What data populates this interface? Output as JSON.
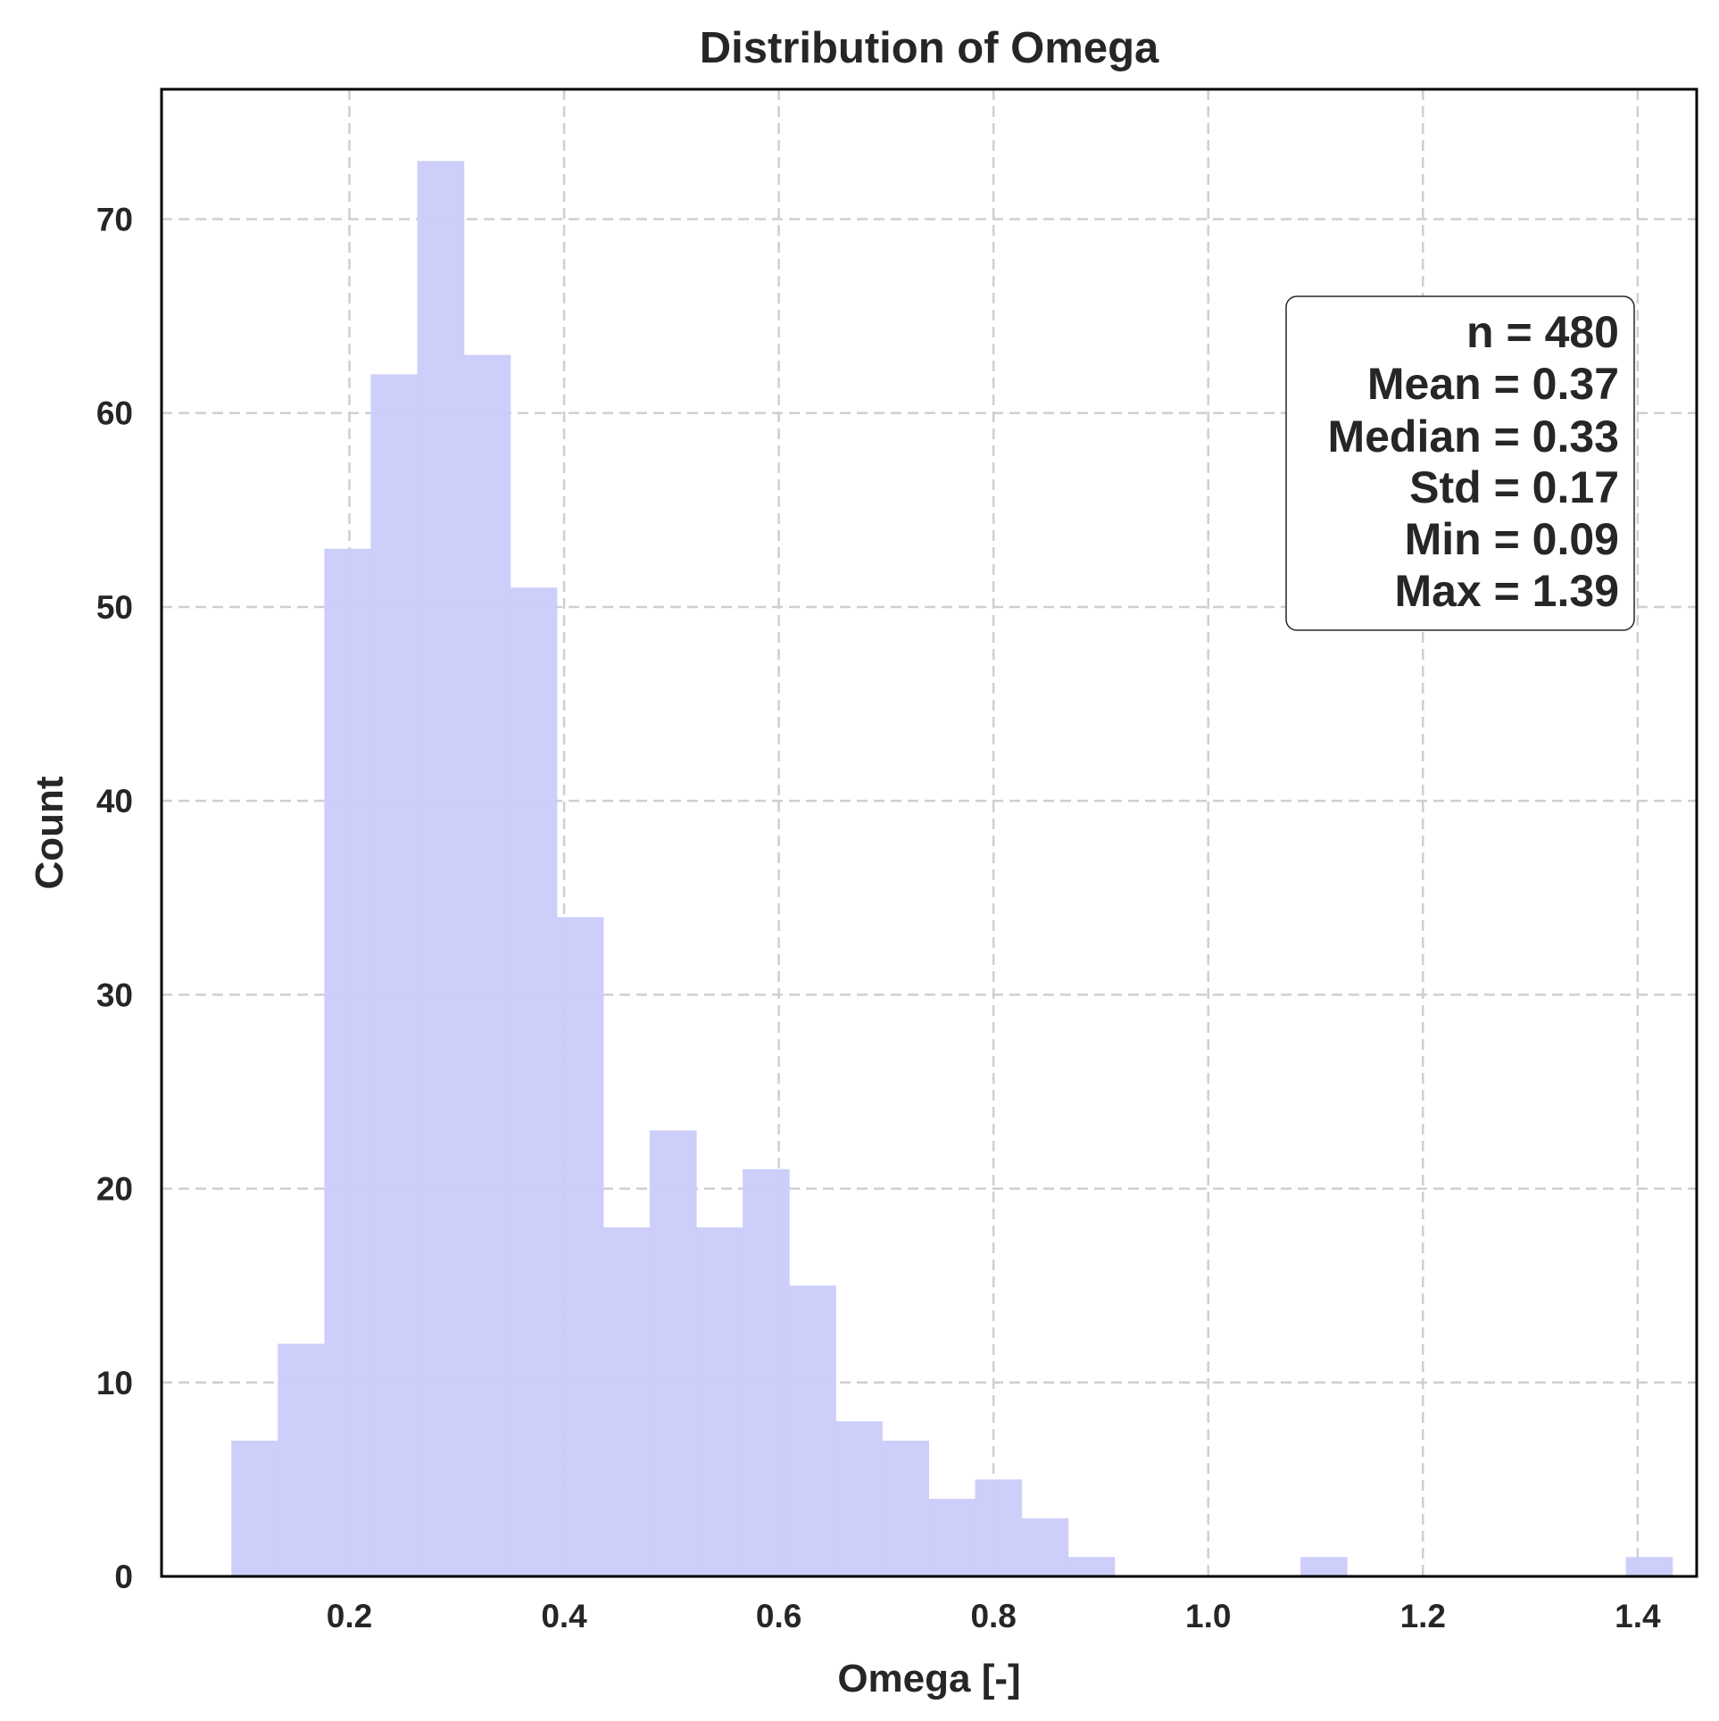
{
  "chart_data": {
    "type": "bar",
    "title": "Distribution of Omega",
    "xlabel": "Omega [-]",
    "ylabel": "Count",
    "xlim": [
      0.025,
      1.455
    ],
    "ylim": [
      0,
      76.7
    ],
    "xticks": [
      0.2,
      0.4,
      0.6,
      0.8,
      1.0,
      1.2,
      1.4
    ],
    "xtick_labels": [
      "0.2",
      "0.4",
      "0.6",
      "0.8",
      "1.0",
      "1.2",
      "1.4"
    ],
    "yticks": [
      0,
      10,
      20,
      30,
      40,
      50,
      60,
      70
    ],
    "ytick_labels": [
      "0",
      "10",
      "20",
      "30",
      "40",
      "50",
      "60",
      "70"
    ],
    "grid": true,
    "bin_start": 0.09,
    "bin_width": 0.0433,
    "counts": [
      7,
      12,
      53,
      62,
      73,
      63,
      51,
      34,
      18,
      23,
      18,
      21,
      15,
      8,
      7,
      4,
      5,
      3,
      1,
      0,
      0,
      0,
      0,
      1,
      0,
      0,
      0,
      0,
      0,
      0,
      1
    ],
    "bar_color": "#ccccfa",
    "stats_box": {
      "location": "upper right",
      "lines": [
        "n = 480",
        "Mean = 0.37",
        "Median = 0.33",
        "Std = 0.17",
        "Min = 0.09",
        "Max = 1.39"
      ]
    }
  }
}
